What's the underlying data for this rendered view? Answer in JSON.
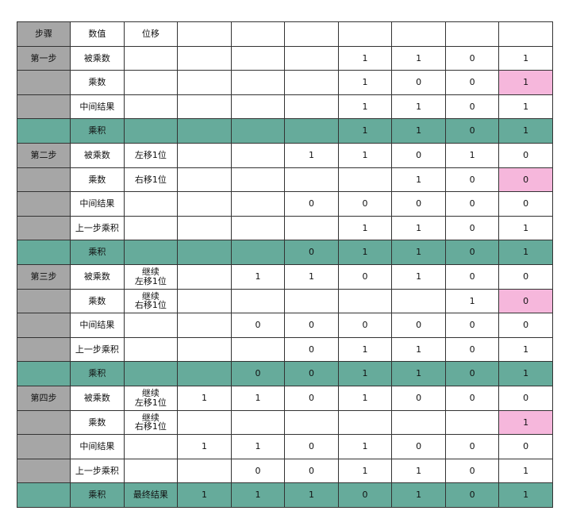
{
  "table": {
    "pink_color": "#f6b7dc",
    "product_color": "#66ab9b",
    "step_color": "#a6a6a6",
    "rows": [
      {
        "type": "hdr",
        "cells": [
          "步骤",
          "数值",
          "位移",
          "",
          "",
          "",
          "",
          "",
          "",
          ""
        ]
      },
      {
        "type": "start",
        "cells": [
          "第一步",
          "被乘数",
          "",
          "",
          "",
          "",
          "1",
          "1",
          "0",
          "1"
        ]
      },
      {
        "type": "normal",
        "pink": 9,
        "cells": [
          "",
          "乘数",
          "",
          "",
          "",
          "",
          "1",
          "0",
          "0",
          "1"
        ]
      },
      {
        "type": "normal",
        "cells": [
          "",
          "中间结果",
          "",
          "",
          "",
          "",
          "1",
          "1",
          "0",
          "1"
        ]
      },
      {
        "type": "product",
        "cells": [
          "",
          "乘积",
          "",
          "",
          "",
          "",
          "1",
          "1",
          "0",
          "1"
        ]
      },
      {
        "type": "start",
        "cells": [
          "第二步",
          "被乘数",
          "左移1位",
          "",
          "",
          "1",
          "1",
          "0",
          "1",
          "0"
        ]
      },
      {
        "type": "normal",
        "pink": 9,
        "cells": [
          "",
          "乘数",
          "右移1位",
          "",
          "",
          "",
          "",
          "1",
          "0",
          "0"
        ]
      },
      {
        "type": "normal",
        "cells": [
          "",
          "中间结果",
          "",
          "",
          "",
          "0",
          "0",
          "0",
          "0",
          "0"
        ]
      },
      {
        "type": "normal",
        "cells": [
          "",
          "上一步乘积",
          "",
          "",
          "",
          "",
          "1",
          "1",
          "0",
          "1"
        ]
      },
      {
        "type": "product",
        "cells": [
          "",
          "乘积",
          "",
          "",
          "",
          "0",
          "1",
          "1",
          "0",
          "1"
        ]
      },
      {
        "type": "start",
        "cells": [
          "第三步",
          "被乘数",
          "继续\n左移1位",
          "",
          "1",
          "1",
          "0",
          "1",
          "0",
          "0"
        ]
      },
      {
        "type": "normal",
        "pink": 9,
        "cells": [
          "",
          "乘数",
          "继续\n右移1位",
          "",
          "",
          "",
          "",
          "",
          "1",
          "0"
        ]
      },
      {
        "type": "normal",
        "cells": [
          "",
          "中间结果",
          "",
          "",
          "0",
          "0",
          "0",
          "0",
          "0",
          "0"
        ]
      },
      {
        "type": "normal",
        "cells": [
          "",
          "上一步乘积",
          "",
          "",
          "",
          "0",
          "1",
          "1",
          "0",
          "1"
        ]
      },
      {
        "type": "product",
        "cells": [
          "",
          "乘积",
          "",
          "",
          "0",
          "0",
          "1",
          "1",
          "0",
          "1"
        ]
      },
      {
        "type": "start",
        "cells": [
          "第四步",
          "被乘数",
          "继续\n左移1位",
          "1",
          "1",
          "0",
          "1",
          "0",
          "0",
          "0"
        ]
      },
      {
        "type": "normal",
        "pink": 9,
        "cells": [
          "",
          "乘数",
          "继续\n右移1位",
          "",
          "",
          "",
          "",
          "",
          "",
          "1"
        ]
      },
      {
        "type": "normal",
        "cells": [
          "",
          "中间结果",
          "",
          "1",
          "1",
          "0",
          "1",
          "0",
          "0",
          "0"
        ]
      },
      {
        "type": "normal",
        "cells": [
          "",
          "上一步乘积",
          "",
          "",
          "0",
          "0",
          "1",
          "1",
          "0",
          "1"
        ]
      },
      {
        "type": "product",
        "cells": [
          "",
          "乘积",
          "最终结果",
          "1",
          "1",
          "1",
          "0",
          "1",
          "0",
          "1"
        ]
      }
    ]
  }
}
